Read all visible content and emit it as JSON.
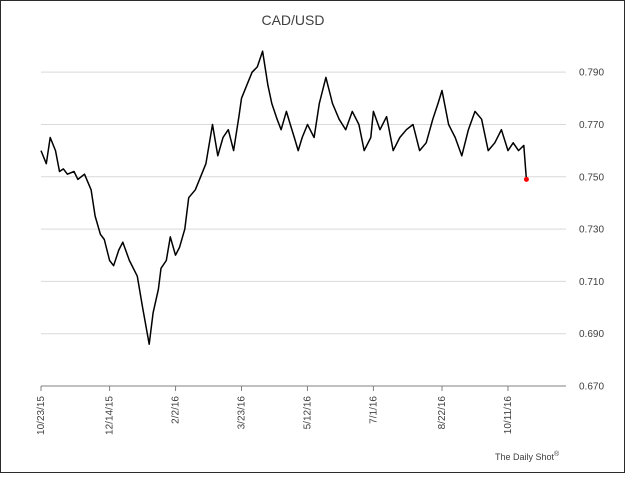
{
  "chart_data": {
    "type": "line",
    "title": "CAD/USD",
    "xlabel": "",
    "ylabel": "",
    "ylim": [
      0.67,
      0.8
    ],
    "yticks": [
      "0.670",
      "0.690",
      "0.710",
      "0.730",
      "0.750",
      "0.770",
      "0.790"
    ],
    "yaxis_side": "right",
    "grid": "horizontal",
    "xlim": [
      "2015-10-23",
      "2016-11-24"
    ],
    "xticks": [
      "10/23/15",
      "12/14/15",
      "2/2/16",
      "3/23/16",
      "5/12/16",
      "7/1/16",
      "8/22/16",
      "10/11/16"
    ],
    "series": [
      {
        "color": "#000000",
        "x": [
          "2015-10-23",
          "2015-10-27",
          "2015-10-30",
          "2015-11-03",
          "2015-11-06",
          "2015-11-09",
          "2015-11-12",
          "2015-11-17",
          "2015-11-20",
          "2015-11-25",
          "2015-11-30",
          "2015-12-03",
          "2015-12-07",
          "2015-12-10",
          "2015-12-14",
          "2015-12-17",
          "2015-12-21",
          "2015-12-24",
          "2015-12-29",
          "2016-01-04",
          "2016-01-08",
          "2016-01-13",
          "2016-01-16",
          "2016-01-20",
          "2016-01-22",
          "2016-01-26",
          "2016-01-29",
          "2016-02-02",
          "2016-02-05",
          "2016-02-09",
          "2016-02-12",
          "2016-02-17",
          "2016-02-21",
          "2016-02-25",
          "2016-03-01",
          "2016-03-05",
          "2016-03-09",
          "2016-03-13",
          "2016-03-17",
          "2016-03-21",
          "2016-03-23",
          "2016-03-27",
          "2016-03-31",
          "2016-04-04",
          "2016-04-08",
          "2016-04-12",
          "2016-04-15",
          "2016-04-19",
          "2016-04-22",
          "2016-04-26",
          "2016-04-29",
          "2016-05-02",
          "2016-05-05",
          "2016-05-08",
          "2016-05-12",
          "2016-05-17",
          "2016-05-21",
          "2016-05-26",
          "2016-05-31",
          "2016-06-05",
          "2016-06-10",
          "2016-06-15",
          "2016-06-20",
          "2016-06-24",
          "2016-06-29",
          "2016-07-01",
          "2016-07-06",
          "2016-07-11",
          "2016-07-16",
          "2016-07-21",
          "2016-07-26",
          "2016-07-31",
          "2016-08-05",
          "2016-08-10",
          "2016-08-15",
          "2016-08-19",
          "2016-08-22",
          "2016-08-27",
          "2016-09-01",
          "2016-09-06",
          "2016-09-11",
          "2016-09-16",
          "2016-09-21",
          "2016-09-26",
          "2016-10-01",
          "2016-10-06",
          "2016-10-11",
          "2016-10-15",
          "2016-10-19",
          "2016-10-23",
          "2016-10-25"
        ],
        "values": [
          0.76,
          0.755,
          0.765,
          0.76,
          0.752,
          0.753,
          0.751,
          0.752,
          0.749,
          0.751,
          0.745,
          0.735,
          0.728,
          0.726,
          0.718,
          0.716,
          0.722,
          0.725,
          0.718,
          0.712,
          0.7,
          0.686,
          0.698,
          0.707,
          0.715,
          0.718,
          0.727,
          0.72,
          0.723,
          0.73,
          0.742,
          0.745,
          0.75,
          0.755,
          0.77,
          0.758,
          0.765,
          0.768,
          0.76,
          0.773,
          0.78,
          0.785,
          0.79,
          0.792,
          0.798,
          0.785,
          0.778,
          0.772,
          0.768,
          0.775,
          0.77,
          0.765,
          0.76,
          0.765,
          0.77,
          0.765,
          0.778,
          0.788,
          0.778,
          0.772,
          0.768,
          0.775,
          0.77,
          0.76,
          0.765,
          0.775,
          0.768,
          0.773,
          0.76,
          0.765,
          0.768,
          0.77,
          0.76,
          0.763,
          0.772,
          0.778,
          0.783,
          0.77,
          0.765,
          0.758,
          0.768,
          0.775,
          0.772,
          0.76,
          0.763,
          0.768,
          0.76,
          0.763,
          0.76,
          0.762,
          0.749
        ]
      }
    ],
    "end_marker": {
      "x": "2016-10-25",
      "value": 0.749,
      "color": "#ff0000"
    },
    "credit": "The Daily Shot",
    "credit_mark": "®"
  }
}
